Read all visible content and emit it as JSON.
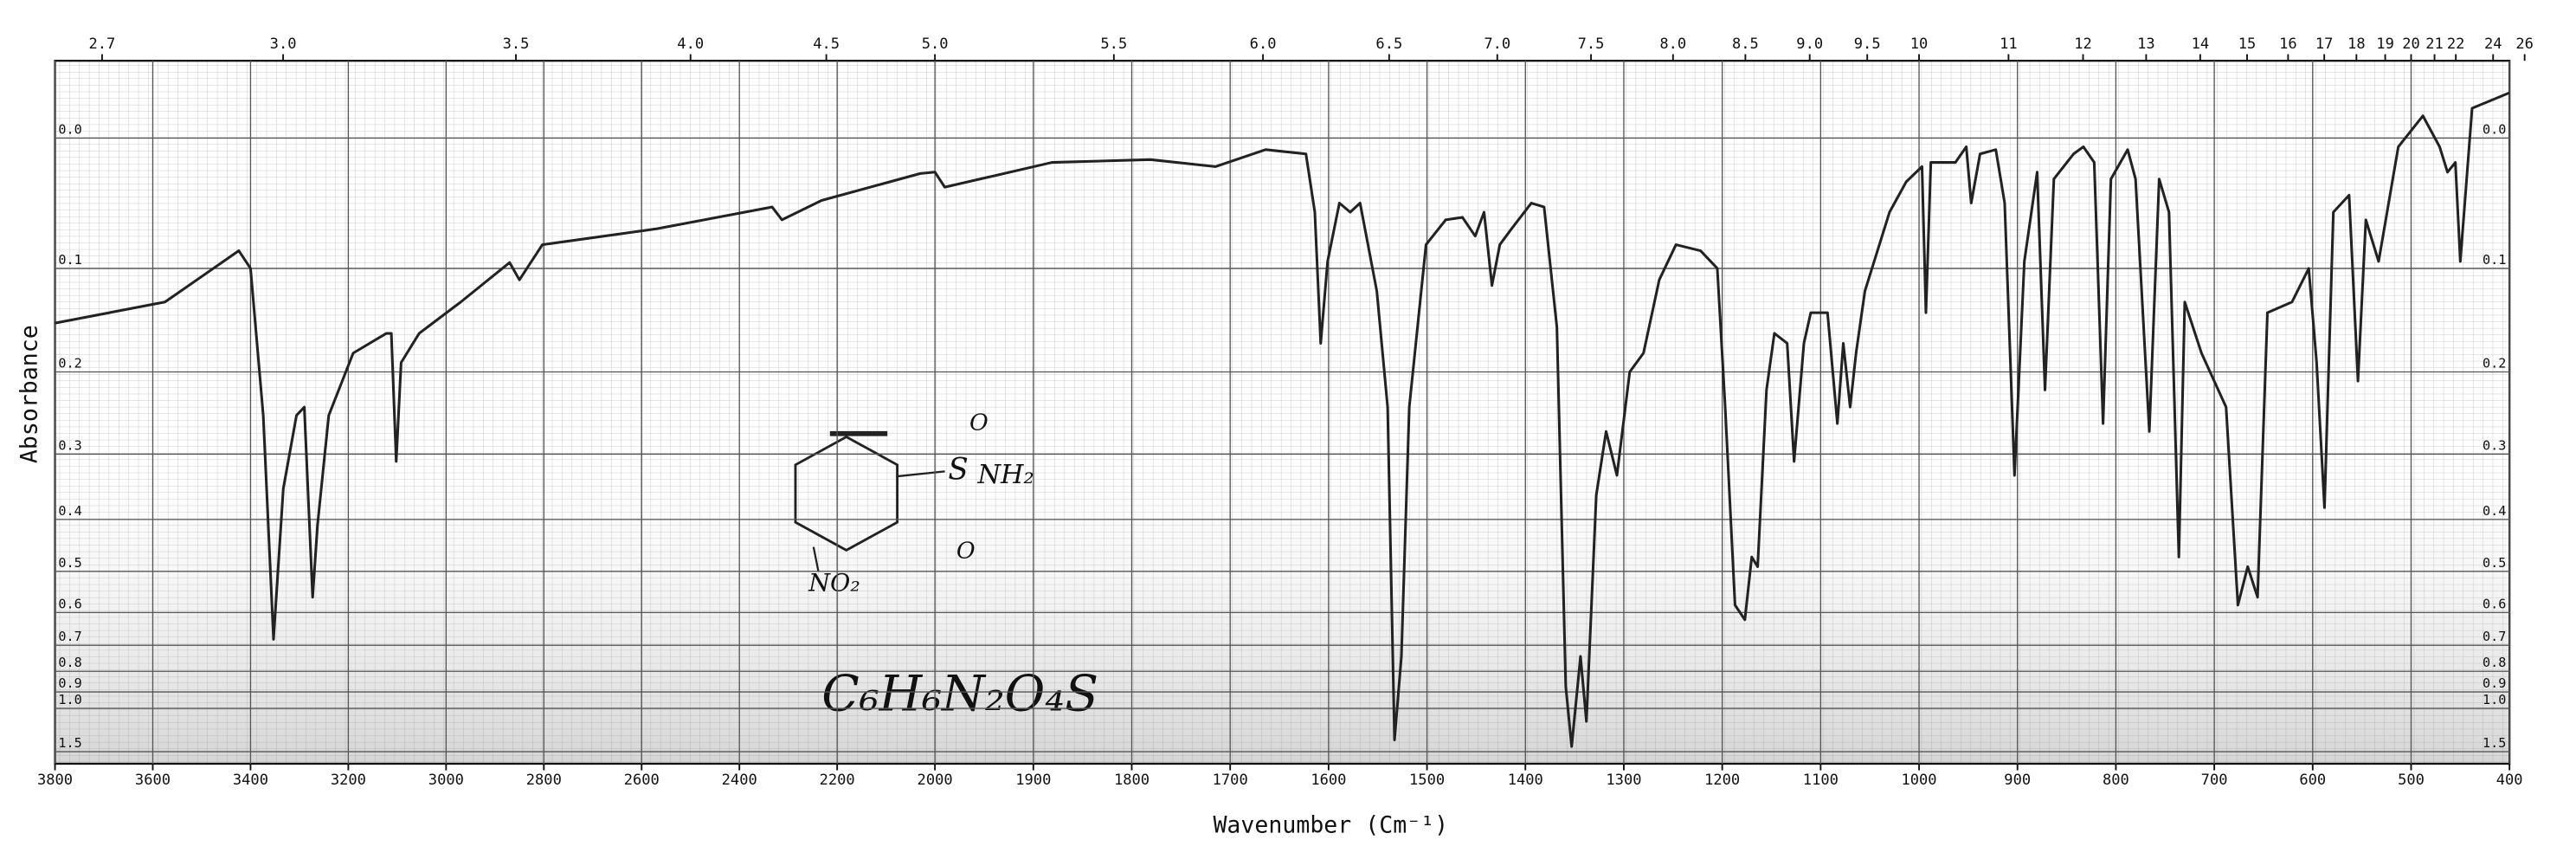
{
  "chart_data": {
    "type": "line",
    "y_label": "Absorbance",
    "x_label": "Wavenumber (Cm⁻¹)",
    "formula": "C₆H₆N₂O₄S",
    "structure_labels": [
      "O",
      "S",
      "NH₂",
      "O",
      "NO₂"
    ],
    "color": "#222222",
    "yscale": "transmittance",
    "ylim": [
      -0.05,
      1.9
    ],
    "yticks": [
      {
        "value": 0,
        "label": "0.0"
      },
      0.1,
      0.2,
      0.3,
      0.4,
      0.5,
      0.6,
      0.7,
      0.8,
      0.9,
      {
        "value": 1,
        "label": "1.0"
      },
      1.5
    ],
    "xlim": [
      3800,
      400
    ],
    "x_scale_break": 2000,
    "xticks": [
      3800,
      3600,
      3400,
      3200,
      3000,
      2800,
      2600,
      2400,
      2200,
      2000,
      1900,
      1800,
      1700,
      1600,
      1500,
      1400,
      1300,
      1200,
      1100,
      1000,
      900,
      800,
      700,
      600,
      500,
      400
    ],
    "x2ticks": [
      2.7,
      {
        "value": 3,
        "label": "3.0"
      },
      3.5,
      {
        "value": 4,
        "label": "4.0"
      },
      4.5,
      {
        "value": 5,
        "label": "5.0"
      },
      5.5,
      {
        "value": 6,
        "label": "6.0"
      },
      6.5,
      {
        "value": 7,
        "label": "7.0"
      },
      7.5,
      {
        "value": 8,
        "label": "8.0"
      },
      8.5,
      {
        "value": 9,
        "label": "9.0"
      },
      9.5,
      10,
      11,
      12,
      13,
      14,
      15,
      16,
      17,
      18,
      19,
      20,
      21,
      22,
      24,
      26
    ],
    "grid": true,
    "x": [
      3800,
      3575,
      3424,
      3400,
      3374,
      3353,
      3333,
      3306,
      3290,
      3273,
      3263,
      3240,
      3190,
      3122,
      3112,
      3102,
      3092,
      3055,
      2970,
      2870,
      2850,
      2803,
      2568,
      2333,
      2313,
      2232,
      2030,
      2000,
      1990,
      1948,
      1881,
      1781,
      1715,
      1664,
      1623,
      1614,
      1608,
      1601,
      1589,
      1578,
      1568,
      1551,
      1540,
      1533,
      1526,
      1518,
      1501,
      1481,
      1464,
      1451,
      1442,
      1434,
      1426,
      1414,
      1394,
      1381,
      1368,
      1359,
      1353,
      1344,
      1338,
      1328,
      1318,
      1307,
      1294,
      1280,
      1264,
      1247,
      1222,
      1205,
      1197,
      1187,
      1177,
      1170,
      1164,
      1155,
      1147,
      1134,
      1127,
      1117,
      1110,
      1093,
      1083,
      1077,
      1070,
      1064,
      1055,
      1030,
      1013,
      997,
      993,
      988,
      963,
      952,
      947,
      938,
      922,
      913,
      903,
      893,
      880,
      872,
      863,
      843,
      833,
      822,
      813,
      805,
      788,
      780,
      766,
      756,
      746,
      736,
      730,
      713,
      688,
      676,
      666,
      656,
      646,
      621,
      604,
      596,
      588,
      579,
      563,
      554,
      546,
      533,
      513,
      488,
      471,
      463,
      455,
      450,
      438,
      400
    ],
    "values": [
      0.15,
      0.13,
      0.085,
      0.1,
      0.25,
      0.68,
      0.35,
      0.25,
      0.24,
      0.56,
      0.41,
      0.25,
      0.18,
      0.16,
      0.16,
      0.31,
      0.19,
      0.16,
      0.13,
      0.095,
      0.11,
      0.08,
      0.067,
      0.05,
      0.06,
      0.045,
      0.025,
      0.024,
      0.035,
      0.028,
      0.017,
      0.015,
      0.02,
      0.008,
      0.011,
      0.054,
      0.17,
      0.094,
      0.047,
      0.054,
      0.047,
      0.12,
      0.24,
      1.3,
      0.74,
      0.24,
      0.08,
      0.06,
      0.058,
      0.073,
      0.054,
      0.115,
      0.08,
      0.067,
      0.047,
      0.05,
      0.154,
      0.87,
      1.4,
      0.74,
      1.1,
      0.36,
      0.27,
      0.33,
      0.2,
      0.18,
      0.11,
      0.08,
      0.085,
      0.1,
      0.24,
      0.58,
      0.62,
      0.47,
      0.49,
      0.22,
      0.16,
      0.17,
      0.31,
      0.17,
      0.14,
      0.14,
      0.26,
      0.17,
      0.24,
      0.18,
      0.12,
      0.054,
      0.031,
      0.02,
      0.14,
      0.017,
      0.017,
      0.006,
      0.047,
      0.011,
      0.008,
      0.047,
      0.33,
      0.094,
      0.024,
      0.22,
      0.029,
      0.011,
      0.006,
      0.017,
      0.26,
      0.029,
      0.008,
      0.029,
      0.27,
      0.029,
      0.054,
      0.47,
      0.13,
      0.18,
      0.24,
      0.58,
      0.49,
      0.56,
      0.14,
      0.13,
      0.1,
      0.19,
      0.38,
      0.054,
      0.041,
      0.21,
      0.06,
      0.094,
      0.006,
      -0.015,
      0.006,
      0.024,
      0.017,
      0.094,
      -0.02,
      -0.03
    ]
  }
}
